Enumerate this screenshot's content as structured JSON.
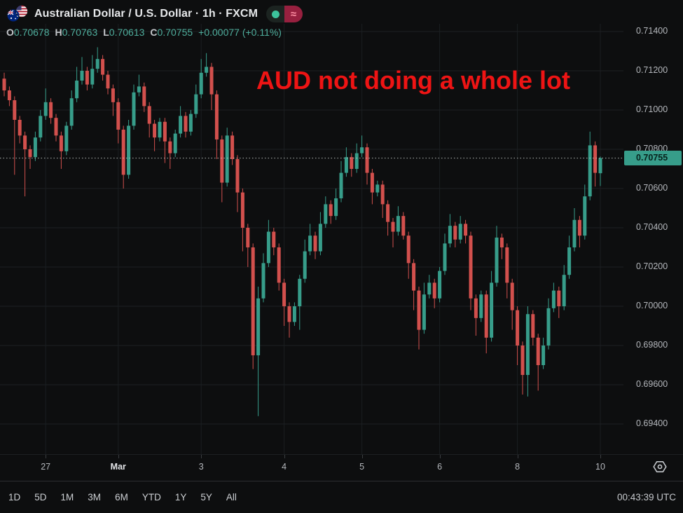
{
  "header": {
    "symbol_title": "Australian Dollar / U.S. Dollar · 1h · FXCM",
    "flag_icon": "australia-us-flags",
    "status": {
      "dot_color": "#3cc29c",
      "paused_glyph": "≈",
      "pill_color": "#97203f"
    },
    "ohlc": {
      "o_label": "O",
      "o": "0.70678",
      "h_label": "H",
      "h": "0.70763",
      "l_label": "L",
      "l": "0.70613",
      "c_label": "C",
      "c": "0.70755",
      "change": "+0.00077 (+0.11%)"
    }
  },
  "annotation": {
    "text": "AUD not doing a whole lot",
    "color": "#ee1414"
  },
  "price_axis": {
    "current": {
      "value": "0.70755",
      "bg": "#379d8a"
    }
  },
  "toolbar": {
    "ranges": [
      "1D",
      "5D",
      "1M",
      "3M",
      "6M",
      "YTD",
      "1Y",
      "5Y",
      "All"
    ],
    "clock": "00:43:39 UTC"
  },
  "chart_data": {
    "type": "candlestick",
    "symbol": "AUD/USD",
    "interval": "1h",
    "exchange": "FXCM",
    "up_color": "#379d8a",
    "down_color": "#d2504d",
    "grid": true,
    "last_price": 0.70755,
    "y_axis": {
      "min": 0.693,
      "max": 0.7146,
      "tick_step": 0.002,
      "ticks": [
        0.714,
        0.712,
        0.71,
        0.708,
        0.706,
        0.704,
        0.702,
        0.7,
        0.698,
        0.696,
        0.694
      ],
      "tick_labels": [
        "0.71400",
        "0.71200",
        "0.71000",
        "0.70800",
        "0.70600",
        "0.70400",
        "0.70200",
        "0.70000",
        "0.69800",
        "0.69600",
        "0.69400"
      ]
    },
    "x_axis": {
      "labels": [
        {
          "text": "27",
          "candle_index": 8,
          "month": false
        },
        {
          "text": "Mar",
          "candle_index": 22,
          "month": true
        },
        {
          "text": "3",
          "candle_index": 38,
          "month": false
        },
        {
          "text": "4",
          "candle_index": 54,
          "month": false
        },
        {
          "text": "5",
          "candle_index": 69,
          "month": false
        },
        {
          "text": "6",
          "candle_index": 84,
          "month": false
        },
        {
          "text": "8",
          "candle_index": 99,
          "month": false
        },
        {
          "text": "10",
          "candle_index": 115,
          "month": false
        }
      ]
    },
    "candles": [
      [
        0.7116,
        0.7119,
        0.7107,
        0.711
      ],
      [
        0.711,
        0.7112,
        0.7102,
        0.7105
      ],
      [
        0.7105,
        0.7107,
        0.7067,
        0.7095
      ],
      [
        0.7095,
        0.7097,
        0.7083,
        0.7087
      ],
      [
        0.7087,
        0.7089,
        0.7056,
        0.708
      ],
      [
        0.708,
        0.7082,
        0.707,
        0.7076
      ],
      [
        0.7076,
        0.7089,
        0.7074,
        0.7086
      ],
      [
        0.7086,
        0.71,
        0.7084,
        0.7097
      ],
      [
        0.7097,
        0.7111,
        0.7095,
        0.7104
      ],
      [
        0.7104,
        0.7106,
        0.7093,
        0.7096
      ],
      [
        0.7096,
        0.7098,
        0.7084,
        0.7087
      ],
      [
        0.7087,
        0.7089,
        0.707,
        0.7079
      ],
      [
        0.7079,
        0.7094,
        0.7077,
        0.7092
      ],
      [
        0.7092,
        0.711,
        0.709,
        0.7106
      ],
      [
        0.7106,
        0.7122,
        0.7104,
        0.7115
      ],
      [
        0.7115,
        0.7127,
        0.7113,
        0.712
      ],
      [
        0.712,
        0.7122,
        0.711,
        0.7113
      ],
      [
        0.7113,
        0.7128,
        0.7111,
        0.7121
      ],
      [
        0.7121,
        0.7132,
        0.7119,
        0.7126
      ],
      [
        0.7126,
        0.7128,
        0.7115,
        0.7118
      ],
      [
        0.7118,
        0.712,
        0.7108,
        0.7111
      ],
      [
        0.7111,
        0.7113,
        0.7097,
        0.7104
      ],
      [
        0.7104,
        0.7106,
        0.7083,
        0.709
      ],
      [
        0.709,
        0.7092,
        0.706,
        0.7067
      ],
      [
        0.7067,
        0.7095,
        0.7065,
        0.7092
      ],
      [
        0.7092,
        0.7113,
        0.709,
        0.7109
      ],
      [
        0.7109,
        0.7118,
        0.7107,
        0.7112
      ],
      [
        0.7112,
        0.7114,
        0.7099,
        0.7102
      ],
      [
        0.7102,
        0.7104,
        0.7086,
        0.7093
      ],
      [
        0.7093,
        0.7095,
        0.7079,
        0.7086
      ],
      [
        0.7086,
        0.7096,
        0.7084,
        0.7094
      ],
      [
        0.7094,
        0.7096,
        0.7073,
        0.7084
      ],
      [
        0.7084,
        0.7086,
        0.707,
        0.7078
      ],
      [
        0.7078,
        0.709,
        0.7076,
        0.7088
      ],
      [
        0.7088,
        0.7102,
        0.7086,
        0.7097
      ],
      [
        0.7097,
        0.7099,
        0.7086,
        0.7089
      ],
      [
        0.7089,
        0.71,
        0.7087,
        0.7098
      ],
      [
        0.7098,
        0.7113,
        0.7096,
        0.7108
      ],
      [
        0.7108,
        0.7126,
        0.7106,
        0.7119
      ],
      [
        0.7119,
        0.7129,
        0.7117,
        0.7122
      ],
      [
        0.7122,
        0.7124,
        0.71,
        0.7108
      ],
      [
        0.7108,
        0.711,
        0.7075,
        0.7085
      ],
      [
        0.7085,
        0.7087,
        0.7053,
        0.7063
      ],
      [
        0.7063,
        0.7091,
        0.7061,
        0.7087
      ],
      [
        0.7087,
        0.7089,
        0.7072,
        0.7075
      ],
      [
        0.7075,
        0.7077,
        0.7048,
        0.7058
      ],
      [
        0.7058,
        0.706,
        0.7028,
        0.704
      ],
      [
        0.704,
        0.7042,
        0.702,
        0.703
      ],
      [
        0.703,
        0.7032,
        0.6968,
        0.6975
      ],
      [
        0.6975,
        0.701,
        0.6944,
        0.7004
      ],
      [
        0.7004,
        0.7027,
        0.7002,
        0.7022
      ],
      [
        0.7022,
        0.7044,
        0.702,
        0.7038
      ],
      [
        0.7038,
        0.704,
        0.7026,
        0.703
      ],
      [
        0.703,
        0.7032,
        0.7008,
        0.7012
      ],
      [
        0.7012,
        0.7014,
        0.699,
        0.7
      ],
      [
        0.7,
        0.7002,
        0.6984,
        0.6992
      ],
      [
        0.6992,
        0.7002,
        0.699,
        0.7
      ],
      [
        0.7,
        0.7016,
        0.6988,
        0.7014
      ],
      [
        0.7014,
        0.7034,
        0.7012,
        0.7028
      ],
      [
        0.7028,
        0.7042,
        0.7026,
        0.7036
      ],
      [
        0.7036,
        0.7038,
        0.7024,
        0.7028
      ],
      [
        0.7028,
        0.7048,
        0.7026,
        0.7042
      ],
      [
        0.7042,
        0.7056,
        0.704,
        0.7052
      ],
      [
        0.7052,
        0.7054,
        0.7042,
        0.7046
      ],
      [
        0.7046,
        0.706,
        0.7044,
        0.7055
      ],
      [
        0.7055,
        0.7074,
        0.7053,
        0.7068
      ],
      [
        0.7068,
        0.7081,
        0.7066,
        0.7076
      ],
      [
        0.7076,
        0.7078,
        0.7066,
        0.707
      ],
      [
        0.707,
        0.7083,
        0.7068,
        0.7078
      ],
      [
        0.7078,
        0.7087,
        0.7076,
        0.7081
      ],
      [
        0.7081,
        0.7083,
        0.7062,
        0.7068
      ],
      [
        0.7068,
        0.707,
        0.7052,
        0.7058
      ],
      [
        0.7058,
        0.7064,
        0.7056,
        0.7062
      ],
      [
        0.7062,
        0.7064,
        0.7045,
        0.7052
      ],
      [
        0.7052,
        0.7054,
        0.7036,
        0.7043
      ],
      [
        0.7043,
        0.7045,
        0.703,
        0.7038
      ],
      [
        0.7038,
        0.7051,
        0.7036,
        0.7046
      ],
      [
        0.7046,
        0.7048,
        0.7034,
        0.7036
      ],
      [
        0.7036,
        0.7038,
        0.7014,
        0.7022
      ],
      [
        0.7022,
        0.7024,
        0.6998,
        0.7008
      ],
      [
        0.7008,
        0.701,
        0.6978,
        0.6988
      ],
      [
        0.6988,
        0.7012,
        0.6986,
        0.7006
      ],
      [
        0.7006,
        0.7016,
        0.7004,
        0.7012
      ],
      [
        0.7012,
        0.7014,
        0.6999,
        0.7004
      ],
      [
        0.7004,
        0.702,
        0.7002,
        0.7018
      ],
      [
        0.7018,
        0.7037,
        0.7016,
        0.7032
      ],
      [
        0.7032,
        0.7047,
        0.703,
        0.7041
      ],
      [
        0.7041,
        0.7043,
        0.703,
        0.7034
      ],
      [
        0.7034,
        0.7046,
        0.7032,
        0.7042
      ],
      [
        0.7042,
        0.7044,
        0.7032,
        0.7036
      ],
      [
        0.7036,
        0.7038,
        0.6998,
        0.7004
      ],
      [
        0.7004,
        0.7006,
        0.6985,
        0.6994
      ],
      [
        0.6994,
        0.7008,
        0.6992,
        0.7006
      ],
      [
        0.7006,
        0.7008,
        0.6976,
        0.6984
      ],
      [
        0.6984,
        0.7018,
        0.6982,
        0.7012
      ],
      [
        0.7012,
        0.7041,
        0.701,
        0.7035
      ],
      [
        0.7035,
        0.7037,
        0.7024,
        0.703
      ],
      [
        0.703,
        0.7032,
        0.7004,
        0.7012
      ],
      [
        0.7012,
        0.7014,
        0.6988,
        0.6998
      ],
      [
        0.6998,
        0.7,
        0.697,
        0.698
      ],
      [
        0.698,
        0.6982,
        0.6955,
        0.6965
      ],
      [
        0.6965,
        0.7,
        0.6954,
        0.6996
      ],
      [
        0.6996,
        0.6998,
        0.698,
        0.6984
      ],
      [
        0.6984,
        0.6986,
        0.6957,
        0.697
      ],
      [
        0.697,
        0.6984,
        0.6968,
        0.698
      ],
      [
        0.698,
        0.7004,
        0.6978,
        0.6999
      ],
      [
        0.6999,
        0.7012,
        0.6997,
        0.7008
      ],
      [
        0.7008,
        0.701,
        0.6994,
        0.7
      ],
      [
        0.7,
        0.7021,
        0.6998,
        0.7016
      ],
      [
        0.7016,
        0.7036,
        0.7014,
        0.703
      ],
      [
        0.703,
        0.705,
        0.7028,
        0.7044
      ],
      [
        0.7044,
        0.7046,
        0.703,
        0.7036
      ],
      [
        0.7036,
        0.7062,
        0.7034,
        0.7056
      ],
      [
        0.7056,
        0.7089,
        0.7054,
        0.7082
      ],
      [
        0.7082,
        0.7084,
        0.7061,
        0.7068
      ],
      [
        0.70678,
        0.70763,
        0.70613,
        0.70755
      ]
    ]
  }
}
